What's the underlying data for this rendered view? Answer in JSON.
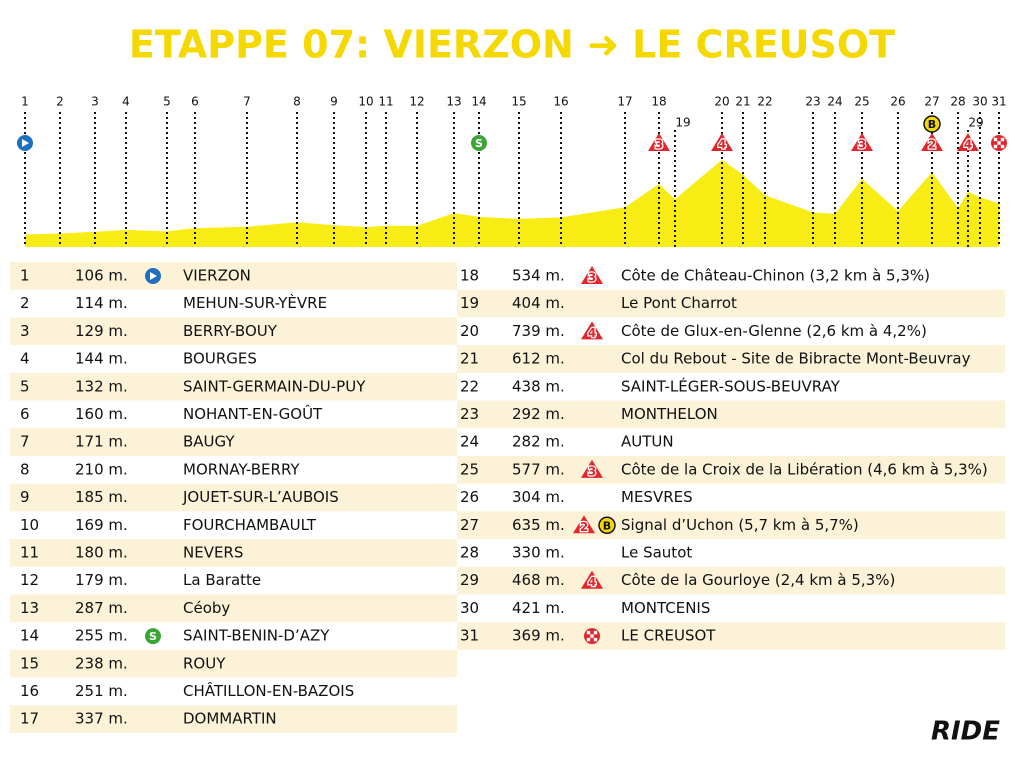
{
  "title": "ETAPPE 07: VIERZON ➜ LE CREUSOT",
  "logo": "RIDE",
  "rows": [
    {
      "num": "1",
      "alt": "106 m.",
      "icons": [
        {
          "kind": "start"
        }
      ],
      "name": "VIERZON"
    },
    {
      "num": "2",
      "alt": "114 m.",
      "icons": [],
      "name": "MEHUN-SUR-YÈVRE"
    },
    {
      "num": "3",
      "alt": "129 m.",
      "icons": [],
      "name": "BERRY-BOUY"
    },
    {
      "num": "4",
      "alt": "144 m.",
      "icons": [],
      "name": "BOURGES"
    },
    {
      "num": "5",
      "alt": "132 m.",
      "icons": [],
      "name": "SAINT-GERMAIN-DU-PUY"
    },
    {
      "num": "6",
      "alt": "160 m.",
      "icons": [],
      "name": "NOHANT-EN-GOÛT"
    },
    {
      "num": "7",
      "alt": "171 m.",
      "icons": [],
      "name": "BAUGY"
    },
    {
      "num": "8",
      "alt": "210 m.",
      "icons": [],
      "name": "MORNAY-BERRY"
    },
    {
      "num": "9",
      "alt": "185 m.",
      "icons": [],
      "name": "JOUET-SUR-L’AUBOIS"
    },
    {
      "num": "10",
      "alt": "169 m.",
      "icons": [],
      "name": "FOURCHAMBAULT"
    },
    {
      "num": "11",
      "alt": "180 m.",
      "icons": [],
      "name": "NEVERS"
    },
    {
      "num": "12",
      "alt": "179 m.",
      "icons": [],
      "name": "La Baratte"
    },
    {
      "num": "13",
      "alt": "287 m.",
      "icons": [],
      "name": "Céoby"
    },
    {
      "num": "14",
      "alt": "255 m.",
      "icons": [
        {
          "kind": "sprint",
          "text": "S"
        }
      ],
      "name": "SAINT-BENIN-D’AZY"
    },
    {
      "num": "15",
      "alt": "238 m.",
      "icons": [],
      "name": "ROUY"
    },
    {
      "num": "16",
      "alt": "251 m.",
      "icons": [],
      "name": "CHÂTILLON-EN-BAZOIS"
    },
    {
      "num": "17",
      "alt": "337 m.",
      "icons": [],
      "name": "DOMMARTIN"
    },
    {
      "num": "18",
      "alt": "534 m.",
      "icons": [
        {
          "kind": "climb",
          "text": "3"
        }
      ],
      "name": "Côte de Château-Chinon (3,2 km à 5,3%)"
    },
    {
      "num": "19",
      "alt": "404 m.",
      "icons": [],
      "name": "Le Pont Charrot"
    },
    {
      "num": "20",
      "alt": "739 m.",
      "icons": [
        {
          "kind": "climb",
          "text": "4"
        }
      ],
      "name": "Côte de Glux-en-Glenne (2,6 km à 4,2%)"
    },
    {
      "num": "21",
      "alt": "612 m.",
      "icons": [],
      "name": "Col du Rebout - Site de Bibracte Mont-Beuvray"
    },
    {
      "num": "22",
      "alt": "438 m.",
      "icons": [],
      "name": "SAINT-LÉGER-SOUS-BEUVRAY"
    },
    {
      "num": "23",
      "alt": "292 m.",
      "icons": [],
      "name": "MONTHELON"
    },
    {
      "num": "24",
      "alt": "282 m.",
      "icons": [],
      "name": "AUTUN"
    },
    {
      "num": "25",
      "alt": "577 m.",
      "icons": [
        {
          "kind": "climb",
          "text": "3"
        }
      ],
      "name": "Côte de la Croix de la Libération (4,6 km à 5,3%)"
    },
    {
      "num": "26",
      "alt": "304 m.",
      "icons": [],
      "name": "MESVRES"
    },
    {
      "num": "27",
      "alt": "635 m.",
      "icons": [
        {
          "kind": "climb",
          "text": "2"
        },
        {
          "kind": "bonus",
          "text": "B"
        }
      ],
      "name": "Signal d’Uchon (5,7 km à 5,7%)"
    },
    {
      "num": "28",
      "alt": "330 m.",
      "icons": [],
      "name": "Le Sautot"
    },
    {
      "num": "29",
      "alt": "468 m.",
      "icons": [
        {
          "kind": "climb",
          "text": "4"
        }
      ],
      "name": "Côte de la Gourloye (2,4 km à 5,3%)"
    },
    {
      "num": "30",
      "alt": "421 m.",
      "icons": [],
      "name": "MONTCENIS"
    },
    {
      "num": "31",
      "alt": "369 m.",
      "icons": [
        {
          "kind": "finish"
        }
      ],
      "name": "LE CREUSOT"
    }
  ]
}
